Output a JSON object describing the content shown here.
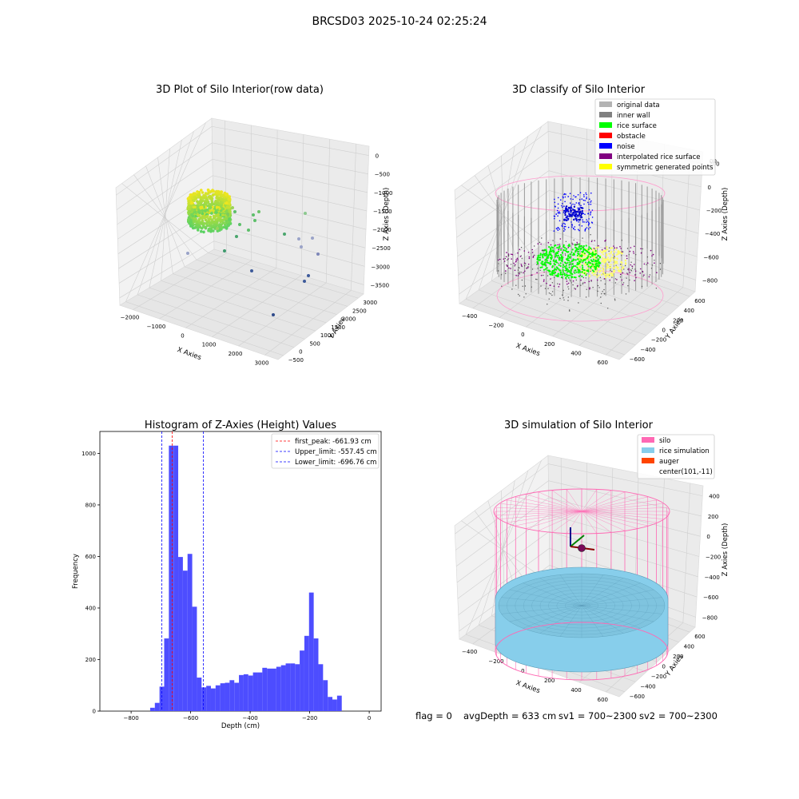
{
  "suptitle": "BRCSD03 2025-10-24 02:25:24",
  "footer": {
    "flag": "flag = 0",
    "avg_depth": "avgDepth = 633 cm",
    "sv1": "sv1 = 700~2300",
    "sv2": "sv2 = 700~2300"
  },
  "colors": {
    "hist_bar": "#4d4dff",
    "first_peak": "#ff0000",
    "limits": "#0000ff",
    "silo": "#ff69b4",
    "rice_sim": "#87ceeb",
    "auger": "#ff4500",
    "rice_surface": "#00ff00",
    "obstacle": "#ff0000",
    "noise": "#0000ff",
    "interp": "#800080",
    "symmetric": "#ffff00",
    "original": "#b3b3b3",
    "inner_wall": "#808080"
  },
  "chart_data": [
    {
      "type": "scatter",
      "subtype": "3d",
      "title": "3D Plot of Silo Interior(row data)",
      "xlabel": "X Axies",
      "ylabel": "Y Axies",
      "zlabel": "Z Axies (Depth)",
      "x_ticks": [
        "−2000",
        "−1000",
        "0",
        "1000",
        "2000",
        "3000"
      ],
      "y_ticks": [
        "−500",
        "0",
        "500",
        "1000",
        "1500",
        "2000",
        "2500",
        "3000"
      ],
      "z_ticks": [
        "0",
        "−500",
        "−1000",
        "−1500",
        "−2000",
        "−2500",
        "−3000",
        "−3500"
      ]
    },
    {
      "type": "scatter",
      "subtype": "3d",
      "title": "3D classify of Silo Interior",
      "xlabel": "X Axies",
      "ylabel": "Y Axies",
      "zlabel": "Z Axies (Depth)",
      "x_ticks": [
        "−400",
        "−200",
        "0",
        "200",
        "400",
        "600"
      ],
      "y_ticks": [
        "−600",
        "−400",
        "−200",
        "0",
        "200",
        "400",
        "600"
      ],
      "z_ticks": [
        "200",
        "0",
        "−200",
        "−400",
        "−600",
        "−800"
      ],
      "z_top_tick": "00",
      "legend": [
        {
          "label": "original data",
          "color": "#b3b3b3"
        },
        {
          "label": "inner wall",
          "color": "#808080"
        },
        {
          "label": "rice surface",
          "color": "#00ff00"
        },
        {
          "label": "obstacle",
          "color": "#ff0000"
        },
        {
          "label": "noise",
          "color": "#0000ff"
        },
        {
          "label": "interpolated rice surface",
          "color": "#800080"
        },
        {
          "label": "symmetric generated points",
          "color": "#ffff00"
        }
      ],
      "legend_position": "top-right"
    },
    {
      "type": "bar",
      "subtype": "histogram",
      "title": "Histogram of Z-Axies (Height) Values",
      "xlabel": "Depth (cm)",
      "ylabel": "Frequency",
      "xlim": [
        -905,
        40
      ],
      "ylim": [
        0,
        1085
      ],
      "x_ticks": [
        {
          "value": -800,
          "label": "−800"
        },
        {
          "value": -600,
          "label": "−600"
        },
        {
          "value": -400,
          "label": "−400"
        },
        {
          "value": -200,
          "label": "−200"
        },
        {
          "value": 0,
          "label": "0"
        }
      ],
      "y_ticks": [
        {
          "value": 0,
          "label": "0"
        },
        {
          "value": 200,
          "label": "200"
        },
        {
          "value": 400,
          "label": "400"
        },
        {
          "value": 600,
          "label": "600"
        },
        {
          "value": 800,
          "label": "800"
        },
        {
          "value": 1000,
          "label": "1000"
        }
      ],
      "bin_start": -736,
      "bin_width": 15.7,
      "counts": [
        13,
        32,
        95,
        282,
        1030,
        1030,
        598,
        545,
        610,
        405,
        130,
        92,
        98,
        88,
        100,
        108,
        110,
        120,
        110,
        140,
        143,
        138,
        150,
        150,
        168,
        165,
        165,
        172,
        178,
        185,
        185,
        182,
        235,
        292,
        460,
        282,
        182,
        120,
        55,
        45,
        60
      ],
      "vlines": [
        {
          "value": -661.93,
          "label": "first_peak: -661.93 cm",
          "color": "#ff0000"
        },
        {
          "value": -557.45,
          "label": "Upper_limit: -557.45 cm",
          "color": "#0000ff"
        },
        {
          "value": -696.76,
          "label": "Lower_limit: -696.76 cm",
          "color": "#0000ff"
        }
      ],
      "legend_position": "top-right"
    },
    {
      "type": "scatter",
      "subtype": "3d-surface",
      "title": "3D simulation of Silo Interior",
      "xlabel": "X Axies",
      "ylabel": "Y Axies",
      "zlabel": "Z Axies (Depth)",
      "x_ticks": [
        "−400",
        "−200",
        "0",
        "200",
        "400",
        "600"
      ],
      "y_ticks": [
        "−600",
        "−400",
        "−200",
        "0",
        "200",
        "400",
        "600"
      ],
      "z_ticks": [
        "400",
        "200",
        "0",
        "−200",
        "−400",
        "−600",
        "−800"
      ],
      "legend": [
        {
          "label": "silo",
          "color": "#ff69b4"
        },
        {
          "label": "rice simulation",
          "color": "#87ceeb"
        },
        {
          "label": "auger",
          "color": "#ff4500"
        },
        {
          "label": "center(101,-11)",
          "color": ""
        }
      ],
      "legend_position": "top-right"
    }
  ]
}
